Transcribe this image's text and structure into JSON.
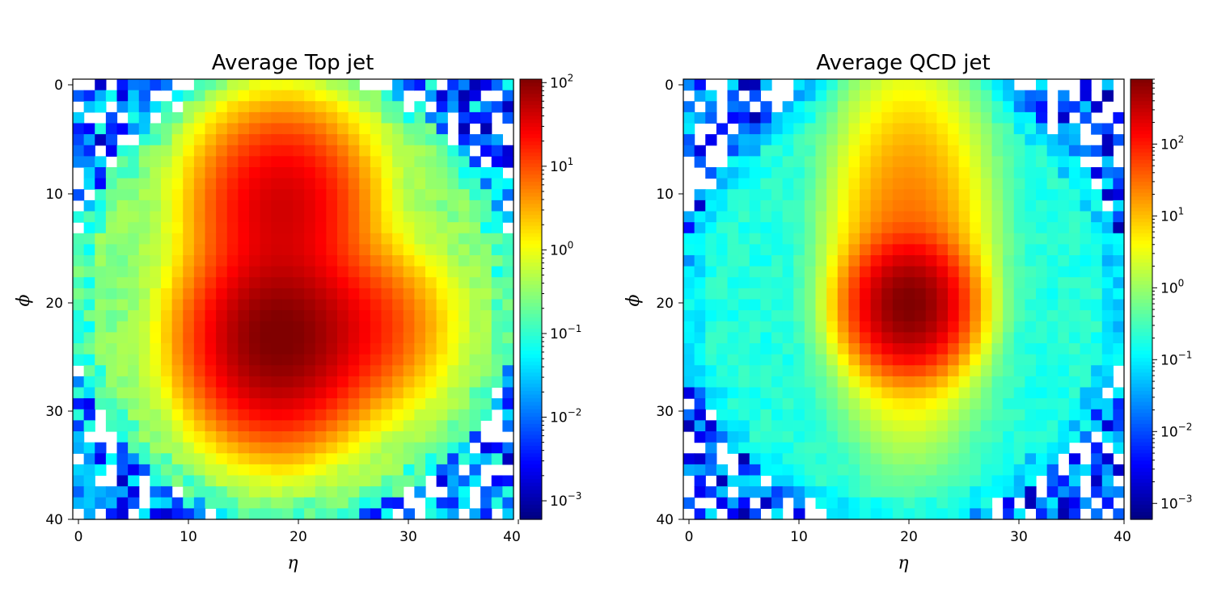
{
  "chart_data": [
    {
      "type": "heatmap",
      "title": "Average Top jet",
      "xlabel": "η",
      "ylabel": "ϕ",
      "x_ticks": [
        "0",
        "10",
        "20",
        "30",
        "40"
      ],
      "y_ticks": [
        "0",
        "10",
        "20",
        "30",
        "40"
      ],
      "xlim": [
        0,
        40
      ],
      "ylim": [
        40,
        0
      ],
      "grid_size": 40,
      "colormap": "jet",
      "color_scale": "log",
      "colorbar_range": [
        0.0006,
        110
      ],
      "colorbar_ticks": [
        {
          "value": 100,
          "base": "10",
          "exp": "2"
        },
        {
          "value": 10,
          "base": "10",
          "exp": "1"
        },
        {
          "value": 1,
          "base": "10",
          "exp": "0"
        },
        {
          "value": 0.1,
          "base": "10",
          "exp": "−1"
        },
        {
          "value": 0.01,
          "base": "10",
          "exp": "−2"
        },
        {
          "value": 0.001,
          "base": "10",
          "exp": "−3"
        }
      ],
      "features": [
        {
          "eta": 18.5,
          "phi": 11,
          "peak": 40,
          "sigma_eta": 3.5,
          "sigma_phi": 4
        },
        {
          "eta": 18,
          "phi": 23,
          "peak": 110,
          "sigma_eta": 3.5,
          "sigma_phi": 4
        },
        {
          "eta": 24,
          "phi": 22,
          "peak": 20,
          "sigma_eta": 4,
          "sigma_phi": 3.5
        }
      ],
      "background_level": 0.3
    },
    {
      "type": "heatmap",
      "title": "Average QCD jet",
      "xlabel": "η",
      "ylabel": "ϕ",
      "x_ticks": [
        "0",
        "10",
        "20",
        "30",
        "40"
      ],
      "y_ticks": [
        "0",
        "10",
        "20",
        "30",
        "40"
      ],
      "xlim": [
        0,
        40
      ],
      "ylim": [
        40,
        0
      ],
      "grid_size": 40,
      "colormap": "jet",
      "color_scale": "log",
      "colorbar_range": [
        0.0006,
        800
      ],
      "colorbar_ticks": [
        {
          "value": 100,
          "base": "10",
          "exp": "2"
        },
        {
          "value": 10,
          "base": "10",
          "exp": "1"
        },
        {
          "value": 1,
          "base": "10",
          "exp": "0"
        },
        {
          "value": 0.1,
          "base": "10",
          "exp": "−1"
        },
        {
          "value": 0.01,
          "base": "10",
          "exp": "−2"
        },
        {
          "value": 0.001,
          "base": "10",
          "exp": "−3"
        }
      ],
      "features": [
        {
          "eta": 20,
          "phi": 20,
          "peak": 800,
          "sigma_eta": 2.2,
          "sigma_phi": 2.5
        },
        {
          "eta": 20,
          "phi": 15,
          "peak": 30,
          "sigma_eta": 3,
          "sigma_phi": 7
        }
      ],
      "background_level": 0.2
    }
  ]
}
